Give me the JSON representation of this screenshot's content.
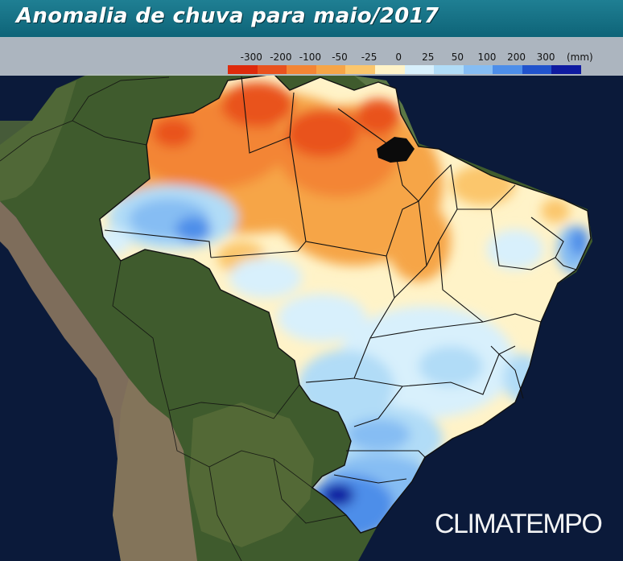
{
  "title": "Anomalia de chuva para maio/2017",
  "legend": {
    "unit": "(mm)",
    "labels": [
      "-300",
      "-200",
      "-100",
      "-50",
      "-25",
      "0",
      "25",
      "50",
      "100",
      "200",
      "300"
    ],
    "colors": [
      "#de2a0c",
      "#e9521e",
      "#f38534",
      "#f6a547",
      "#fbc66c",
      "#fff3c8",
      "#d8f0fc",
      "#b1dcf7",
      "#86bdf3",
      "#4d8ee9",
      "#2153cc",
      "#0e1aa0"
    ]
  },
  "brand": "CLIMATEMPO",
  "map": {
    "ocean_color": "#0b1a3a",
    "land_color": "#3e5a2c",
    "andes_color": "#8e7a62",
    "border_color": "#111111",
    "regions": [
      {
        "name": "north-west",
        "anomaly": "-50 to -100"
      },
      {
        "name": "north",
        "anomaly": "-100 to -200"
      },
      {
        "name": "north-east",
        "anomaly": "0 to -25"
      },
      {
        "name": "central",
        "anomaly": "0 to 25"
      },
      {
        "name": "south-east",
        "anomaly": "25 to 50"
      },
      {
        "name": "south",
        "anomaly": "100 to 300"
      }
    ]
  }
}
